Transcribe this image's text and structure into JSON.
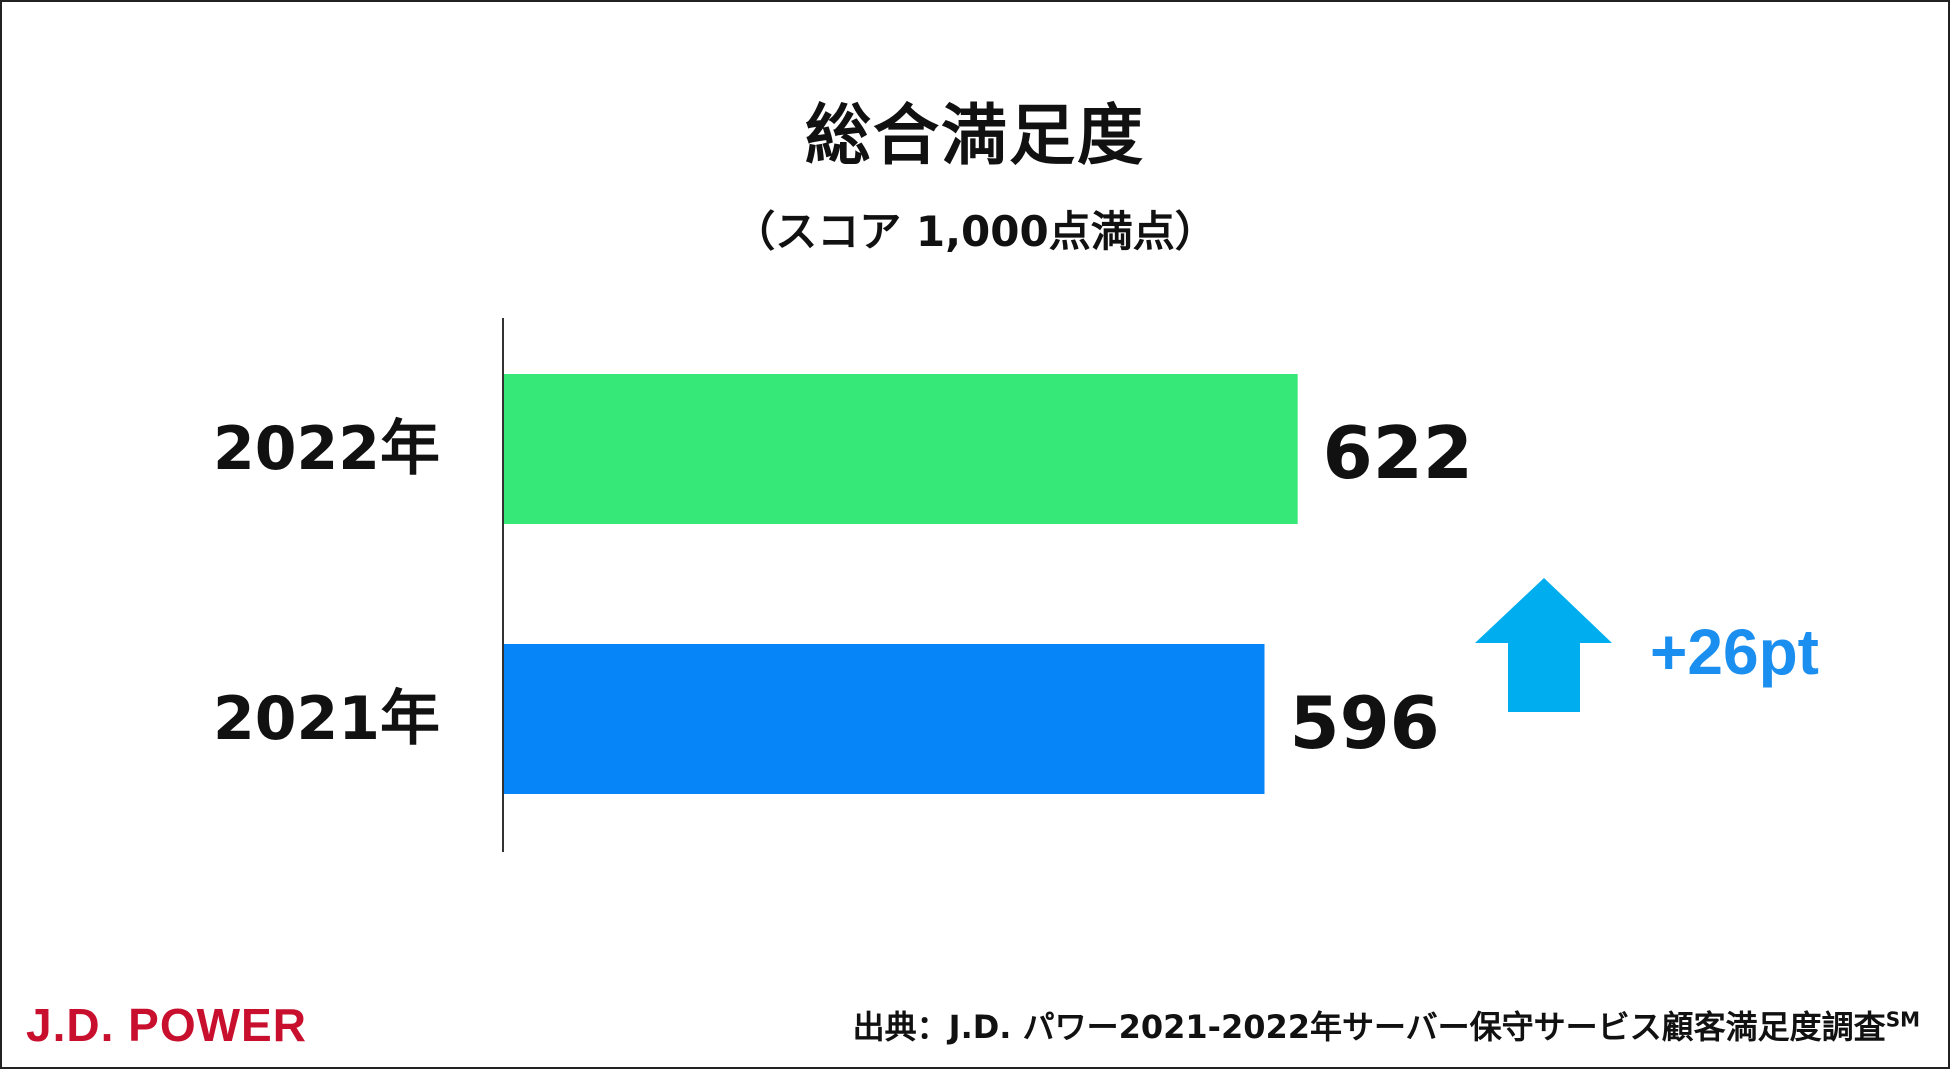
{
  "title": "総合満足度",
  "subtitle": "（スコア 1,000点満点）",
  "chart_data": {
    "type": "bar",
    "orientation": "horizontal",
    "categories": [
      "2022年",
      "2021年"
    ],
    "values": [
      622,
      596
    ],
    "value_labels": [
      "622",
      "596"
    ],
    "bar_colors": [
      "#36e878",
      "#0585f8"
    ],
    "xlim": [
      0,
      1000
    ],
    "grid": false
  },
  "delta": {
    "label": "+26pt",
    "color": "#1b8ff0",
    "arrow_color": "#00aeef",
    "icon": "up-arrow-icon"
  },
  "logo": {
    "text": "J.D. POWER",
    "color": "#c8102e"
  },
  "source": {
    "text": "出典：J.D. パワー2021-2022年サーバー保守サービス顧客満足度調査",
    "mark": "SM"
  }
}
